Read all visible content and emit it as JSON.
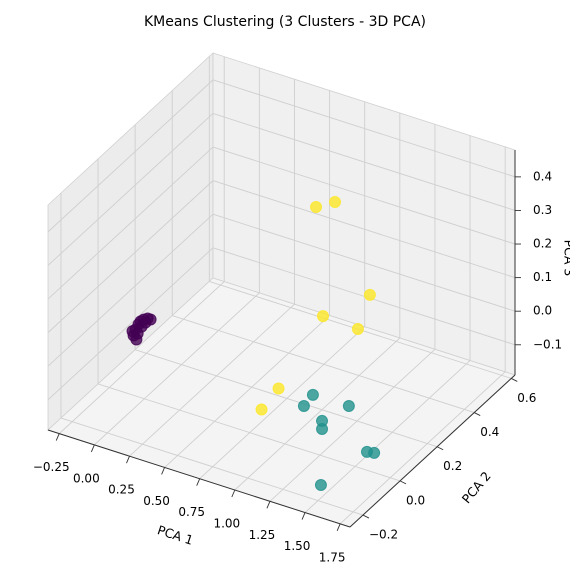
{
  "chart_data": {
    "type": "scatter3d",
    "title": "KMeans Clustering (3 Clusters - 3D PCA)",
    "xlabel": "PCA 1",
    "ylabel": "PCA 2",
    "zlabel": "PCA 3",
    "xlim": [
      -0.33,
      1.82
    ],
    "ylim": [
      -0.27,
      0.62
    ],
    "zlim": [
      -0.19,
      0.48
    ],
    "xticks": [
      {
        "value": -0.25,
        "label": "−0.25"
      },
      {
        "value": 0,
        "label": "0.00"
      },
      0.25,
      {
        "value": 0.5,
        "label": "0.50"
      },
      0.75,
      {
        "value": 1,
        "label": "1.00"
      },
      1.25,
      {
        "value": 1.5,
        "label": "1.50"
      },
      1.75
    ],
    "yticks": [
      {
        "value": -0.2,
        "label": "−0.2"
      },
      {
        "value": 0,
        "label": "0.0"
      },
      0.2,
      0.4,
      0.6
    ],
    "zticks": [
      {
        "value": -0.1,
        "label": "−0.1"
      },
      {
        "value": 0,
        "label": "0.0"
      },
      0.1,
      0.2,
      0.3,
      0.4
    ],
    "grid": true,
    "series": [
      {
        "color": "#440154",
        "x": [
          -0.077,
          -0.063,
          -0.042,
          -0.027,
          -0.005,
          0.023,
          0.044,
          -0.057,
          -0.085,
          -0.02,
          0.008,
          -0.048
        ],
        "y": [
          0,
          0,
          0,
          0,
          0,
          0,
          0,
          0,
          0,
          0,
          0,
          0
        ],
        "z": [
          -0.012,
          0.008,
          0.026,
          0.037,
          0.045,
          0.052,
          0.052,
          -0.021,
          0,
          0.022,
          0.038,
          -0.002
        ]
      },
      {
        "color": "#21918c",
        "x": [
          1.321,
          1.257,
          1.577,
          1.386,
          1.386,
          1.764,
          1.815,
          1.555
        ],
        "y": [
          -0.092,
          -0.092,
          -0.092,
          -0.092,
          -0.092,
          -0.136,
          -0.136,
          -0.226
        ],
        "z": [
          0.046,
          0.004,
          0.047,
          -0.023,
          -0.047,
          -0.042,
          -0.038,
          -0.123
        ]
      },
      {
        "color": "#fde725",
        "x": [
          0.756,
          0.891,
          1.257,
          0.923,
          1.289,
          0.955,
          0.834
        ],
        "y": [
          0.353,
          0.353,
          0.264,
          0.264,
          0.175,
          0,
          0
        ],
        "z": [
          0.303,
          0.336,
          0.154,
          0.046,
          0.102,
          -0.031,
          -0.11
        ]
      }
    ]
  }
}
